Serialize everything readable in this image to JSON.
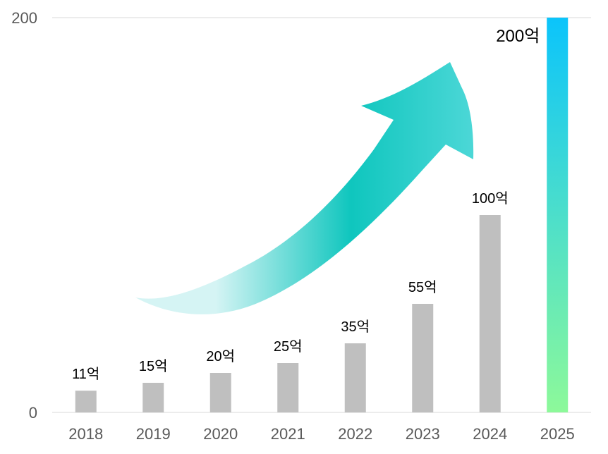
{
  "chart_data": {
    "type": "bar",
    "categories": [
      "2018",
      "2019",
      "2020",
      "2021",
      "2022",
      "2023",
      "2024",
      "2025"
    ],
    "values": [
      11,
      15,
      20,
      25,
      35,
      55,
      100,
      200
    ],
    "data_labels": [
      "11억",
      "15억",
      "20억",
      "25억",
      "35억",
      "55억",
      "100억",
      "200억"
    ],
    "yticks": [
      0,
      200
    ],
    "ylim": [
      0,
      200
    ],
    "grid": true,
    "colors": {
      "bar": "#bfbfbf",
      "highlight_top": "#0bc4fb",
      "highlight_bottom": "#8df99a",
      "arrow": "#0fc6be",
      "arrow_light": "#d5f4f4",
      "axis_text": "#595959",
      "label_text": "#000000",
      "gridline": "#d9d9d9"
    }
  }
}
